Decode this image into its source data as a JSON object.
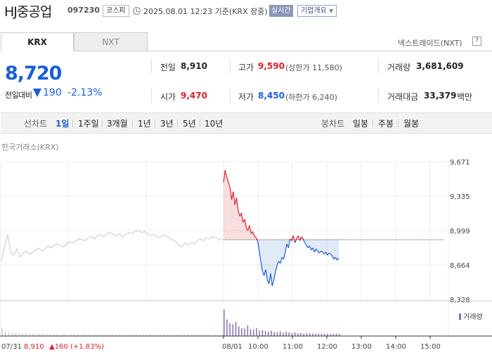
{
  "header": {
    "company_name": "HJ중공업",
    "stock_code": "097230",
    "market_badge": "코스피",
    "timestamp": "2025.08.01 12:23 기준(KRX 장중)",
    "realtime_badge": "실시간",
    "company_overview_label": "기업개요"
  },
  "exchange_tabs": [
    {
      "label": "KRX",
      "active": true
    },
    {
      "label": "NXT",
      "active": false
    }
  ],
  "nextrade_label": "넥스트레이드(NXT)",
  "nextrade_help": "?",
  "price": {
    "current": "8,720",
    "change_label": "전일대비",
    "change_amount": "190",
    "change_rate": "-2.13%",
    "direction": "down"
  },
  "stats": {
    "prev_close_label": "전일",
    "prev_close": "8,910",
    "high_label": "고가",
    "high": "9,590",
    "upper_limit_text": "(상한가 11,580)",
    "volume_label": "거래량",
    "volume": "3,681,609",
    "open_label": "시가",
    "open": "9,470",
    "low_label": "저가",
    "low": "8,450",
    "lower_limit_text": "(하한가 6,240)",
    "amount_label": "거래대금",
    "amount": "33,379",
    "amount_unit": "백만"
  },
  "period_bar": {
    "line_chart_label": "선차트",
    "periods": [
      "1일",
      "1주일",
      "3개월",
      "1년",
      "3년",
      "5년",
      "10년"
    ],
    "active_period": "1일",
    "candle_chart_label": "봉차트",
    "candles": [
      "일봉",
      "주봉",
      "월봉"
    ]
  },
  "chart_title": "한국거래소(KRX)",
  "volume_legend": "거래량",
  "colors": {
    "up": "#d8232a",
    "down": "#1a5fd4",
    "prev_day_line": "#c8c8c8"
  },
  "chart_data": {
    "type": "line",
    "title": "",
    "y_ticks": [
      "9,671",
      "9,335",
      "8,999",
      "8,664",
      "8,328"
    ],
    "ylim": [
      8328,
      9671
    ],
    "reference_price": 8910,
    "x_ticks": [
      "08/01",
      "10:00",
      "11:00",
      "12:00",
      "13:00",
      "14:00",
      "15:00"
    ],
    "prev_day_label": {
      "date": "07/31",
      "close": "8,910",
      "change": "▲160 (+1.83%)"
    },
    "series": [
      {
        "name": "",
        "segment": "prev_day",
        "y": [
          8700,
          8840,
          8960,
          8790,
          8760,
          8820,
          8740,
          8780,
          8800,
          8770,
          8790,
          8810,
          8830,
          8800,
          8820,
          8850,
          8830,
          8860,
          8870,
          8850,
          8840,
          8870,
          8890,
          8880,
          8900,
          8920,
          8910,
          8900,
          8930,
          8940,
          8920,
          8950,
          8960,
          8940,
          8970,
          8980,
          8960,
          8950,
          8970,
          8940,
          8960,
          8980,
          8970,
          8990,
          9000,
          8980,
          8990,
          8970,
          8950,
          8960,
          8940,
          8930,
          8960,
          8950,
          8930,
          8910,
          8890,
          8860,
          8840,
          8880,
          8860,
          8880,
          8870,
          8900,
          8920,
          8900,
          8930,
          8920,
          8940,
          8930,
          8910,
          8920
        ]
      },
      {
        "name": "",
        "segment": "today",
        "y": [
          9470,
          9590,
          9520,
          9470,
          9420,
          9300,
          9380,
          9250,
          9320,
          9200,
          9140,
          9170,
          9080,
          9110,
          9030,
          9000,
          9050,
          8970,
          8990,
          8950,
          8930,
          8900,
          8800,
          8700,
          8600,
          8560,
          8620,
          8520,
          8480,
          8580,
          8460,
          8520,
          8600,
          8660,
          8700,
          8680,
          8740,
          8720,
          8790,
          8870,
          8830,
          8920,
          8900,
          8950,
          8880,
          8920,
          8950,
          8900,
          8940,
          8920,
          8880,
          8860,
          8830,
          8850,
          8810,
          8830,
          8790,
          8820,
          8800,
          8780,
          8800,
          8790,
          8770,
          8790,
          8760,
          8780,
          8770,
          8750,
          8720,
          8740,
          8710,
          8730
        ]
      }
    ],
    "volume": [
      30,
      18,
      14,
      12,
      10,
      9,
      8,
      10,
      7,
      8,
      6,
      7,
      9,
      6,
      5,
      7,
      6,
      5,
      6,
      4,
      5,
      7,
      5,
      4,
      6,
      5,
      4,
      5,
      6,
      4,
      5,
      4,
      6,
      5,
      4,
      5,
      4,
      6,
      5,
      7,
      5,
      4,
      5,
      6,
      4,
      5,
      4,
      6,
      5,
      4,
      5,
      6,
      5,
      4,
      6,
      5,
      4,
      5,
      4,
      6,
      5,
      4,
      5,
      4,
      6,
      100,
      62,
      48,
      44,
      52,
      36,
      30,
      28,
      40,
      26,
      24,
      30,
      20,
      22,
      18,
      16,
      20,
      15,
      14,
      18,
      12,
      16,
      14,
      11,
      13,
      10,
      12,
      9,
      11,
      10,
      9,
      8,
      10,
      9,
      8,
      9,
      7,
      8,
      9,
      7
    ]
  }
}
